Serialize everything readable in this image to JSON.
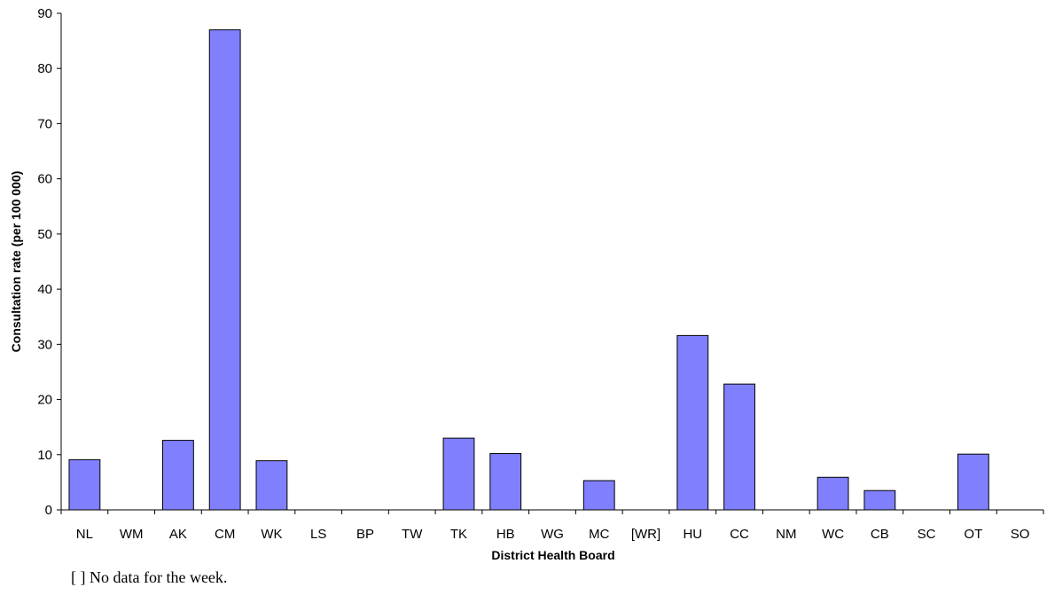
{
  "chart_data": {
    "type": "bar",
    "categories": [
      "NL",
      "WM",
      "AK",
      "CM",
      "WK",
      "LS",
      "BP",
      "TW",
      "TK",
      "HB",
      "WG",
      "MC",
      "[WR]",
      "HU",
      "CC",
      "NM",
      "WC",
      "CB",
      "SC",
      "OT",
      "SO"
    ],
    "values": [
      9.1,
      0,
      12.6,
      87.0,
      8.9,
      0,
      0,
      0,
      13.0,
      10.2,
      0,
      5.3,
      0,
      31.6,
      22.8,
      0,
      5.9,
      3.5,
      0,
      10.1,
      0
    ],
    "title": "",
    "xlabel": "District Health Board",
    "ylabel": "Consultation rate (per 100 000)",
    "ylim": [
      0,
      90
    ],
    "yticks": [
      0,
      10,
      20,
      30,
      40,
      50,
      60,
      70,
      80,
      90
    ],
    "bar_color": "#8080ff",
    "grid": false,
    "legend": "none"
  },
  "footnote": "[ ] No data for the week."
}
